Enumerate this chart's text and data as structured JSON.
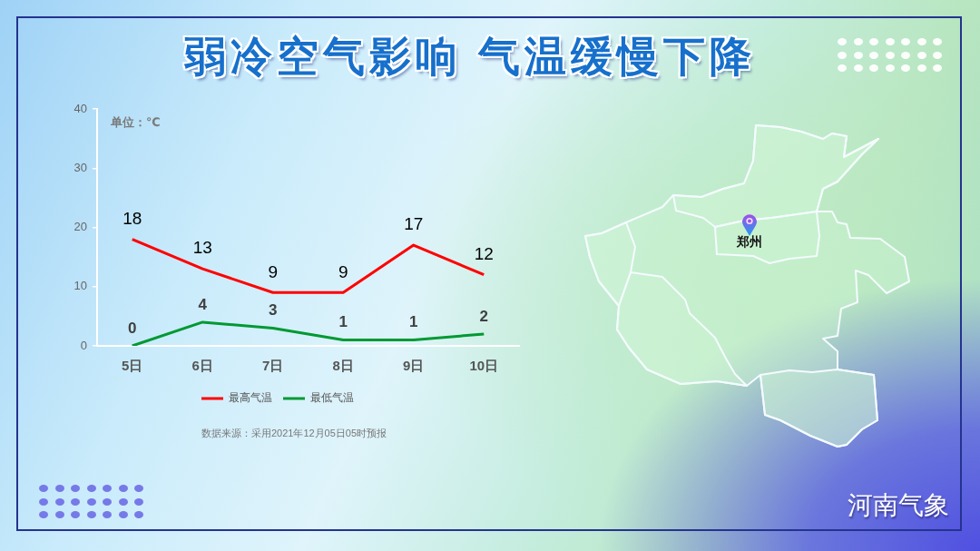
{
  "chart_data": {
    "type": "line",
    "title": "弱冷空气影响 气温缓慢下降",
    "ylabel": "单位：℃",
    "categories": [
      "5日",
      "6日",
      "7日",
      "8日",
      "9日",
      "10日"
    ],
    "series": [
      {
        "name": "最高气温",
        "color": "#ff0000",
        "values": [
          18,
          13,
          9,
          9,
          17,
          12
        ]
      },
      {
        "name": "最低气温",
        "color": "#009933",
        "values": [
          0,
          4,
          3,
          1,
          1,
          2
        ]
      }
    ],
    "ylim": [
      0,
      40
    ],
    "yticks": [
      0,
      10,
      20,
      30,
      40
    ],
    "grid": false,
    "legend": "bottom",
    "marker": "none",
    "line_style": "solid",
    "data_labels": true,
    "annotations": [
      "数据来源：采用2021年12月05日05时预报",
      "郑州",
      "河南气象"
    ]
  }
}
